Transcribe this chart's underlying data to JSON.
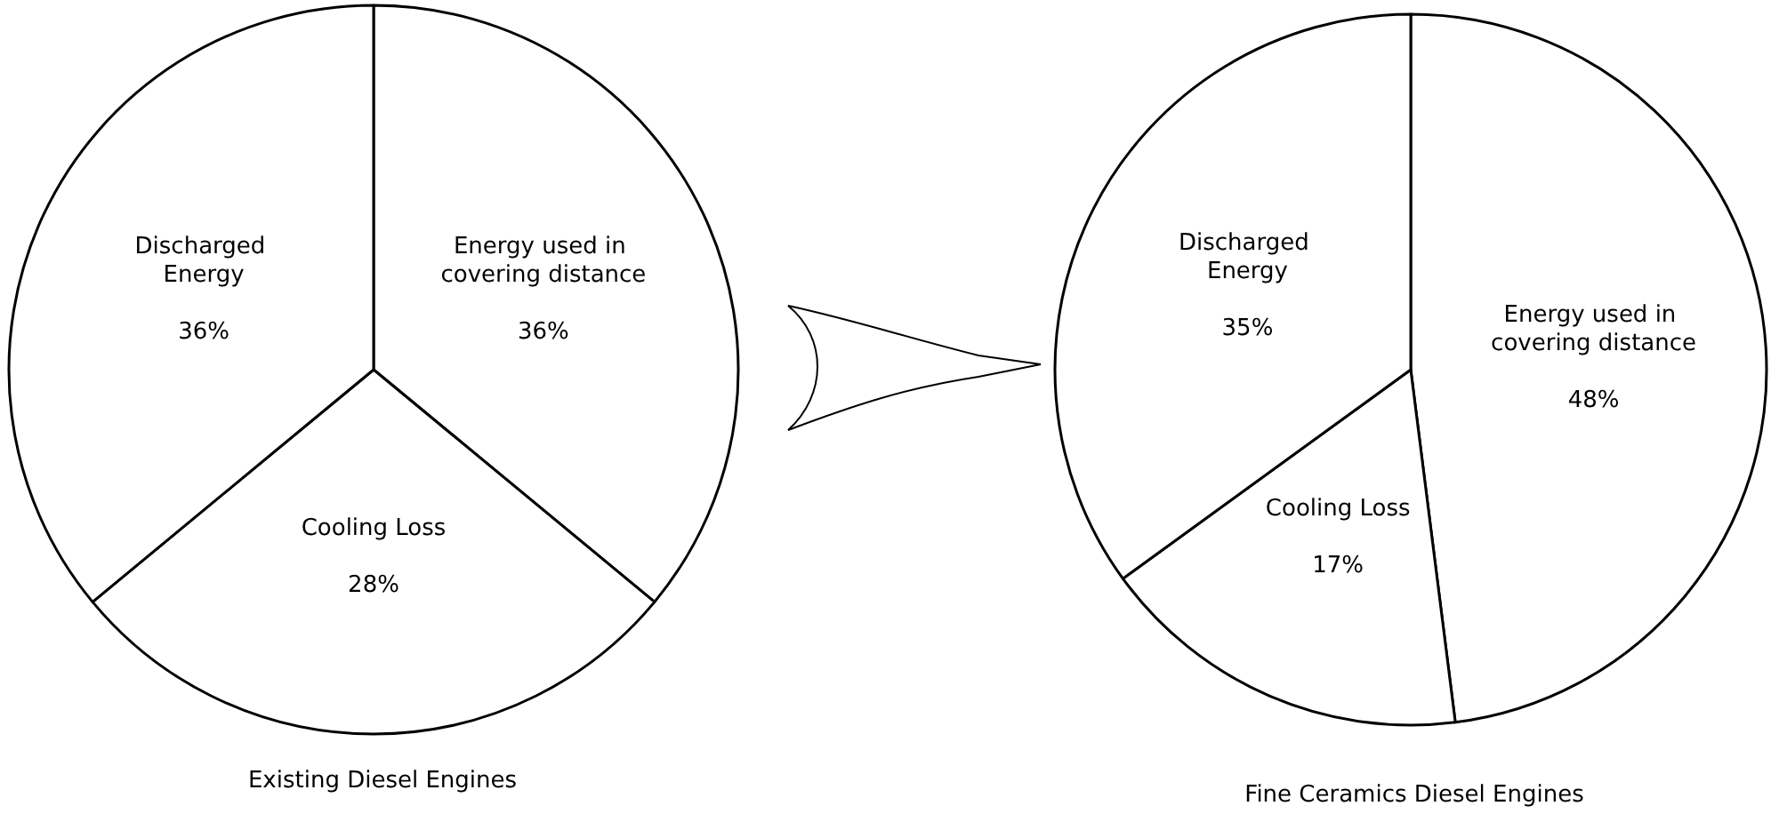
{
  "chart_data": [
    {
      "type": "pie",
      "title": "Existing Diesel Engines",
      "categories": [
        "Energy used in covering distance",
        "Cooling Loss",
        "Discharged Energy"
      ],
      "values": [
        36,
        28,
        36
      ],
      "value_labels": [
        "36%",
        "28%",
        "36%"
      ],
      "colors": [
        "#ffffff",
        "#ffffff",
        "#ffffff"
      ]
    },
    {
      "type": "pie",
      "title": "Fine Ceramics Diesel Engines",
      "categories": [
        "Energy used in covering distance",
        "Cooling Loss",
        "Discharged Energy"
      ],
      "values": [
        48,
        17,
        35
      ],
      "value_labels": [
        "48%",
        "17%",
        "35%"
      ],
      "colors": [
        "#ffffff",
        "#ffffff",
        "#ffffff"
      ]
    }
  ]
}
